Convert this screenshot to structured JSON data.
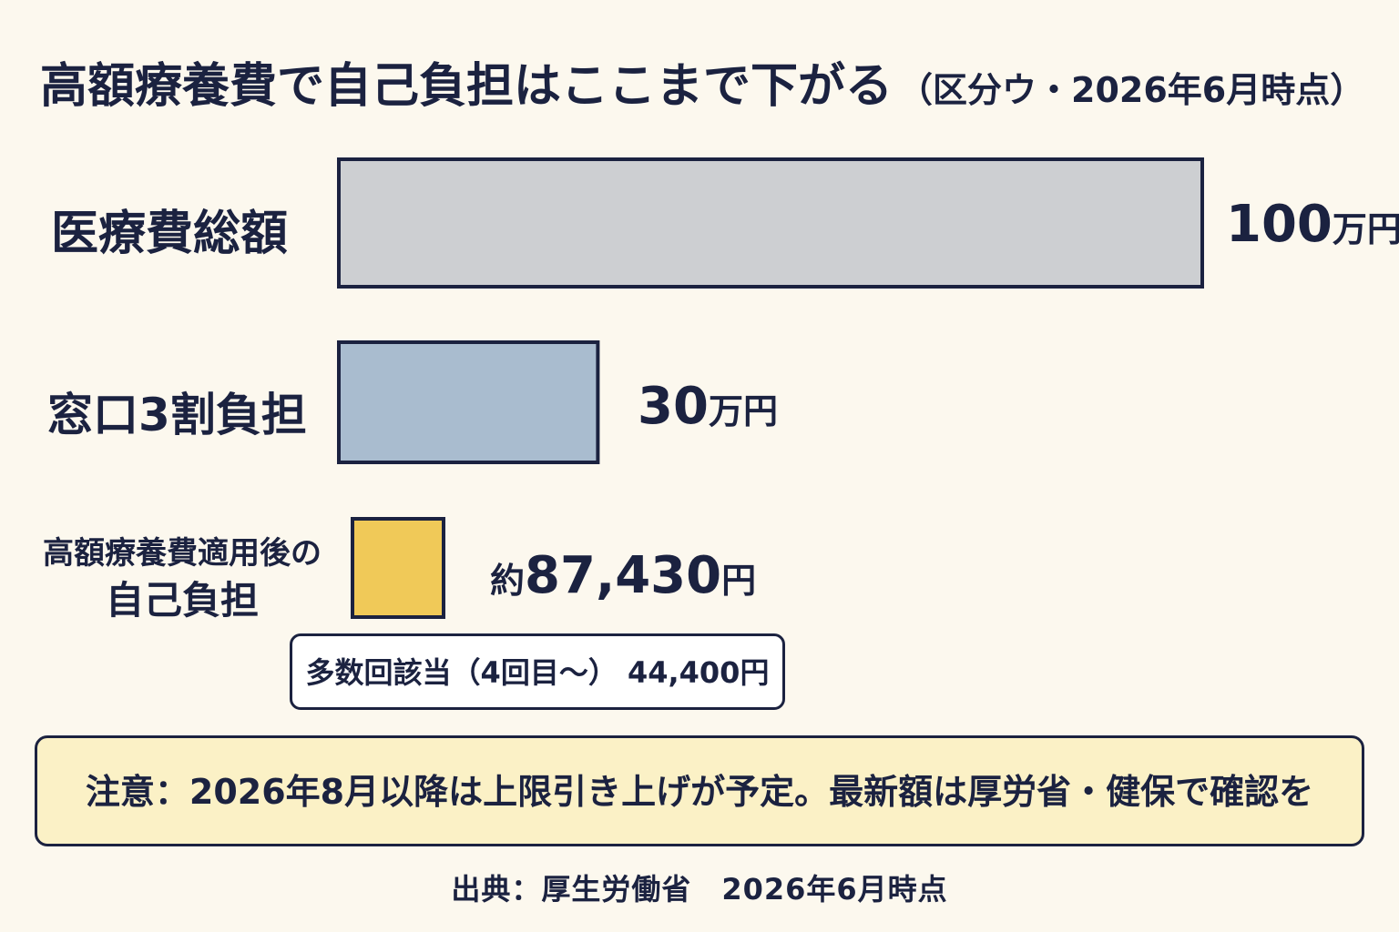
{
  "title": {
    "main": "高額療養費で自己負担はここまで下がる",
    "sub": "（区分ウ・2026年6月時点）"
  },
  "chart_data": {
    "type": "bar",
    "orientation": "horizontal",
    "categories": [
      "医療費総額",
      "窓口3割負担",
      "高額療養費適用後の自己負担"
    ],
    "values": [
      1000000,
      300000,
      87430
    ],
    "unit": "円",
    "value_labels": [
      {
        "number": "100",
        "unit": "万円"
      },
      {
        "number": "30",
        "unit": "万円"
      },
      {
        "prefix": "約",
        "number": "87,430",
        "unit": "円"
      }
    ],
    "colors": [
      "#cdcfd2",
      "#a9bccf",
      "#f0c958"
    ],
    "category_label_lines": [
      [
        "医療費総額"
      ],
      [
        "窓口3割負担"
      ],
      [
        "高額療養費適用後の",
        "自己負担"
      ]
    ],
    "annotation": "多数回該当（4回目〜） 44,400円",
    "grid": false,
    "legend": "none"
  },
  "notice": "注意：2026年8月以降は上限引き上げが予定。最新額は厚労省・健保で確認を",
  "source": "出典：厚生労働省　2026年6月時点"
}
